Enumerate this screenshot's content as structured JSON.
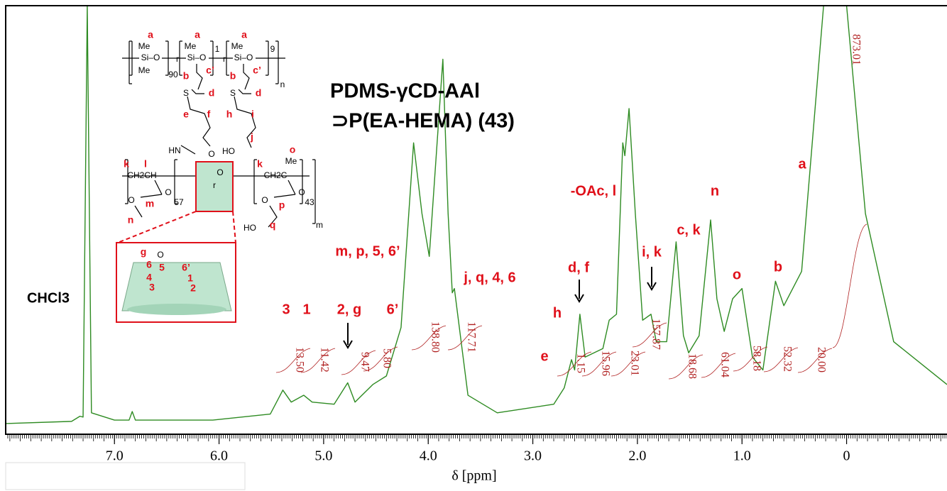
{
  "chart_data": {
    "type": "line",
    "title": "PDMS-γCD-AAl",
    "subtitle": "⊃P(EA-HEMA) (43)",
    "x_label": "δ [ppm]",
    "xlim": [
      8.04,
      -0.96
    ],
    "ylim": [
      0,
      100
    ],
    "xticks": [
      {
        "value": 7,
        "label": "7.0"
      },
      {
        "value": 6,
        "label": "6.0"
      },
      {
        "value": 5,
        "label": "5.0"
      },
      {
        "value": 4,
        "label": "4.0"
      },
      {
        "value": 3,
        "label": "3.0"
      },
      {
        "value": 2,
        "label": "2.0"
      },
      {
        "value": 1,
        "label": "1.0"
      },
      0
    ],
    "minor_tick_interval": 0.02,
    "series": [
      {
        "color": "#2e8b22",
        "x": [
          8.04,
          7.41,
          7.33,
          7.3,
          7.26,
          7.22,
          7.0,
          6.86,
          6.83,
          6.8,
          6.06,
          5.51,
          5.39,
          5.31,
          5.19,
          5.11,
          4.9,
          4.77,
          4.7,
          4.53,
          4.4,
          4.26,
          4.14,
          4.06,
          3.99,
          3.86,
          3.81,
          3.77,
          3.75,
          3.62,
          3.34,
          2.8,
          2.7,
          2.63,
          2.6,
          2.55,
          2.5,
          2.33,
          2.27,
          2.2,
          2.14,
          2.12,
          2.08,
          2.02,
          1.95,
          1.87,
          1.82,
          1.72,
          1.63,
          1.56,
          1.51,
          1.41,
          1.3,
          1.24,
          1.17,
          1.09,
          1.0,
          0.9,
          0.8,
          0.68,
          0.6,
          0.43,
          0.22,
          0.0,
          -0.18,
          -0.45,
          -0.96
        ],
        "values": [
          2.5,
          3,
          4.2,
          4,
          100,
          5,
          3.3,
          3.3,
          5.3,
          3.3,
          3.3,
          4.7,
          10.3,
          7.5,
          9.1,
          7.5,
          7,
          12,
          7.5,
          11.6,
          13.6,
          24.9,
          68,
          51.5,
          41.5,
          87.5,
          51.5,
          33,
          34,
          9.1,
          5,
          7,
          10.8,
          17.4,
          15,
          28,
          18,
          20,
          26.6,
          28,
          68,
          65,
          76,
          51.5,
          26.6,
          28,
          21.6,
          21.6,
          44.9,
          23,
          19,
          23,
          50,
          31.6,
          24,
          31.6,
          34,
          18,
          15,
          35.7,
          30,
          38,
          100,
          100,
          51.5,
          21.6,
          11.6
        ]
      }
    ],
    "integrals": {
      "color": "#b02020",
      "values": [
        13.5,
        11.42,
        9.47,
        5.8,
        138.8,
        117.71,
        1.15,
        15.96,
        23.01,
        157.87,
        18.68,
        61.04,
        58.18,
        52.32,
        20,
        873.01
      ],
      "value_labels": [
        "13.50",
        "11.42",
        "9.47",
        "5.80",
        "138.80",
        "117.71",
        "1.15",
        "15.96",
        "23.01",
        "157.87",
        "18.68",
        "61.04",
        "58.18",
        "52.32",
        "20.00",
        "873.01"
      ]
    },
    "peak_labels": [
      "3",
      "1",
      "2, g",
      "6’",
      "m, p, 5, 6’",
      "j, q, 4, 6",
      "h",
      "d, f",
      "e",
      "-OAc, l",
      "i, k",
      "c, k",
      "n",
      "o",
      "b",
      "a"
    ],
    "solvent_label": "CHCl3",
    "structure_labels": [
      "a",
      "a",
      "a",
      "Me",
      "Me",
      "Me",
      "Si–O",
      "Si–O",
      "Si–O",
      "Me",
      "90",
      "r",
      "r",
      "1",
      "9",
      "n",
      "b",
      "c’",
      "b",
      "c’",
      "S",
      "d",
      "S",
      "d",
      "e",
      "f",
      "h",
      "i",
      "j",
      "HO",
      "HN",
      "O",
      "O",
      "k",
      "l",
      "CH2CH",
      "O",
      "O",
      "57",
      "m",
      "n",
      "r",
      "k",
      "o",
      "Me",
      "CH2C",
      "O",
      "O",
      "43",
      "p",
      "HO",
      "q",
      "m",
      "g",
      "O",
      "6",
      "5",
      "6’",
      "4",
      "3",
      "1",
      "2"
    ]
  }
}
